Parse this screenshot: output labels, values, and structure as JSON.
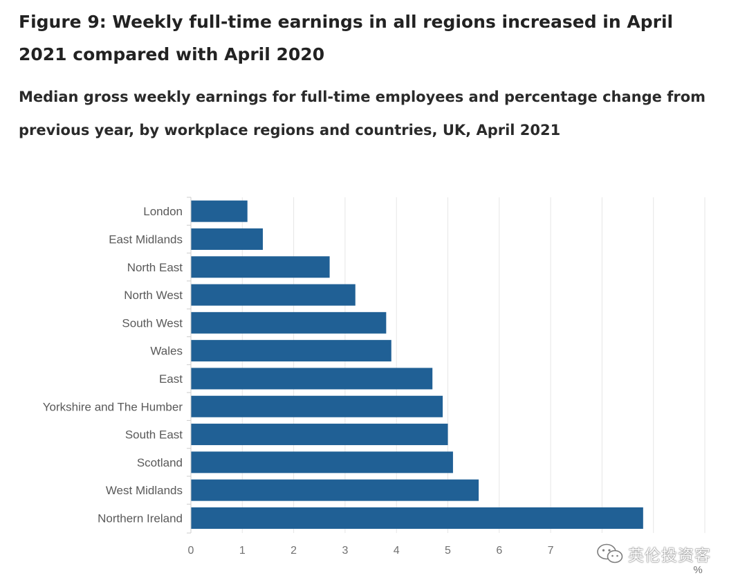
{
  "header": {
    "title": "Figure 9: Weekly full-time earnings in all regions increased in April 2021 compared with April 2020",
    "subtitle": "Median gross weekly earnings for full-time employees and percentage change from previous year, by workplace regions and countries, UK, April 2021"
  },
  "chart_data": {
    "type": "bar",
    "orientation": "horizontal",
    "categories": [
      "London",
      "East Midlands",
      "North East",
      "North West",
      "South West",
      "Wales",
      "East",
      "Yorkshire and The Humber",
      "South East",
      "Scotland",
      "West Midlands",
      "Northern Ireland"
    ],
    "values": [
      1.1,
      1.4,
      2.7,
      3.2,
      3.8,
      3.9,
      4.7,
      4.9,
      5.0,
      5.1,
      5.6,
      8.8
    ],
    "x_ticks": [
      "0",
      "1",
      "2",
      "3",
      "4",
      "5",
      "6",
      "7"
    ],
    "xlabel": "%",
    "xlim": [
      0,
      10
    ],
    "grid": true,
    "bar_color": "#206095",
    "grid_color": "#e6e6e6",
    "axis_color": "#cccccc"
  },
  "watermark": {
    "text": "英伦投资客",
    "icon": "wechat-icon"
  }
}
